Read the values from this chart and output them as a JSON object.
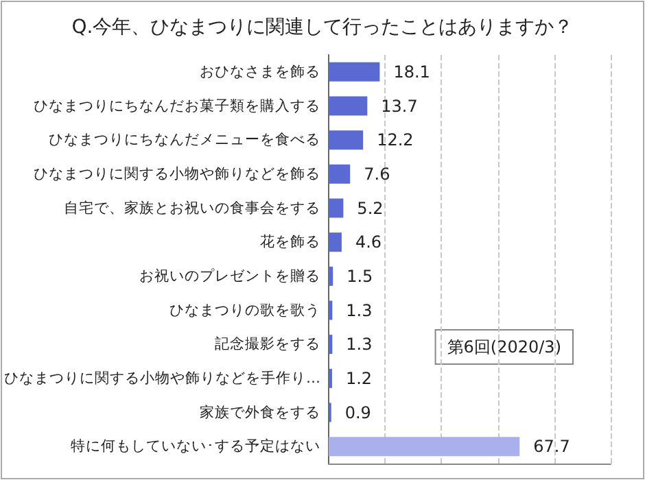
{
  "chart_data": {
    "type": "bar",
    "orientation": "horizontal",
    "title": "Q.今年、ひなまつりに関連して行ったことはありますか？",
    "categories": [
      "おひなさまを飾る",
      "ひなまつりにちなんだお菓子類を購入する",
      "ひなまつりにちなんだメニューを食べる",
      "ひなまつりに関する小物や飾りなどを飾る",
      "自宅で、家族とお祝いの食事会をする",
      "花を飾る",
      "お祝いのプレゼントを贈る",
      "ひなまつりの歌を歌う",
      "記念撮影をする",
      "ひなまつりに関する小物や飾りなどを手作り…",
      "家族で外食をする",
      "特に何もしていない･する予定はない"
    ],
    "values": [
      18.1,
      13.7,
      12.2,
      7.6,
      5.2,
      4.6,
      1.5,
      1.3,
      1.3,
      1.2,
      0.9,
      67.7
    ],
    "colors": [
      "#5b69d3",
      "#5b69d3",
      "#5b69d3",
      "#5b69d3",
      "#5b69d3",
      "#5b69d3",
      "#5b69d3",
      "#5b69d3",
      "#5b69d3",
      "#5b69d3",
      "#5b69d3",
      "#a9b0ec"
    ],
    "xlim": [
      0,
      100
    ],
    "xticks": [
      {
        "value": 0,
        "label": null
      },
      {
        "value": 20,
        "label": null
      },
      {
        "value": 40,
        "label": null
      },
      {
        "value": 60,
        "label": null
      },
      {
        "value": 80,
        "label": null
      },
      {
        "value": 100,
        "label": null
      }
    ],
    "grid": "x",
    "tick_labels": "y",
    "data_labels": true,
    "annotations": [
      "第6回(2020/3)"
    ]
  }
}
